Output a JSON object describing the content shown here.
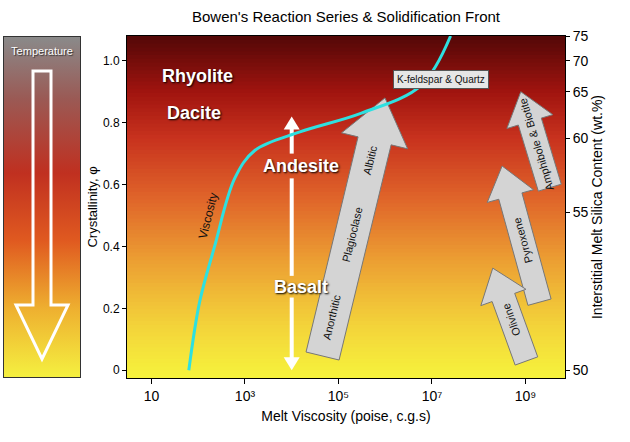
{
  "chart_data": {
    "type": "line",
    "title": "Bowen's Reaction Series & Solidification Front",
    "x_label": "Melt Viscosity (poise, c.g.s)",
    "y_label": "Crystallinity, φ",
    "y2_label": "Interstitial Melt Silica Content (wt.%)",
    "log": "x",
    "grid": false,
    "xlim": [
      3,
      7000000000
    ],
    "xticks": [
      10,
      {
        "value": 1000,
        "label": "10³"
      },
      {
        "value": 100000,
        "label": "10⁵"
      },
      {
        "value": 10000000,
        "label": "10⁷"
      },
      {
        "value": 1000000000,
        "label": "10⁹"
      }
    ],
    "ylim": [
      -0.025,
      1.08
    ],
    "yticks": [
      0,
      0.2,
      0.4,
      0.6,
      0.8,
      {
        "value": 1,
        "label": "1.0"
      }
    ],
    "silica_scale": {
      "crystallinity": [
        0,
        0.51,
        0.75,
        0.9,
        1.0,
        1.08
      ],
      "silica": [
        50,
        55,
        60,
        65,
        70,
        75
      ]
    },
    "series": [
      {
        "name": "Viscosity",
        "color": "#2ee0e0",
        "x": [
          63,
          107,
          224,
          603,
          1620,
          15000,
          300000,
          5800000,
          25000000
        ],
        "values": [
          0,
          0.22,
          0.4,
          0.62,
          0.71,
          0.77,
          0.83,
          0.92,
          1.08
        ]
      }
    ],
    "temperature_label": "Temperature",
    "rock_labels": [
      "Rhyolite",
      "Dacite",
      "Andesite",
      "Basalt"
    ],
    "mineral_arrows": [
      {
        "labels": [
          "Anorthitic",
          "Plagioclase",
          "Albitic"
        ]
      },
      {
        "labels": [
          "Amphibole & Biotite"
        ]
      },
      {
        "labels": [
          "Pyroxene"
        ]
      },
      {
        "labels": [
          "Olivine"
        ]
      }
    ],
    "box_label": "K-feldspar & Quartz"
  }
}
